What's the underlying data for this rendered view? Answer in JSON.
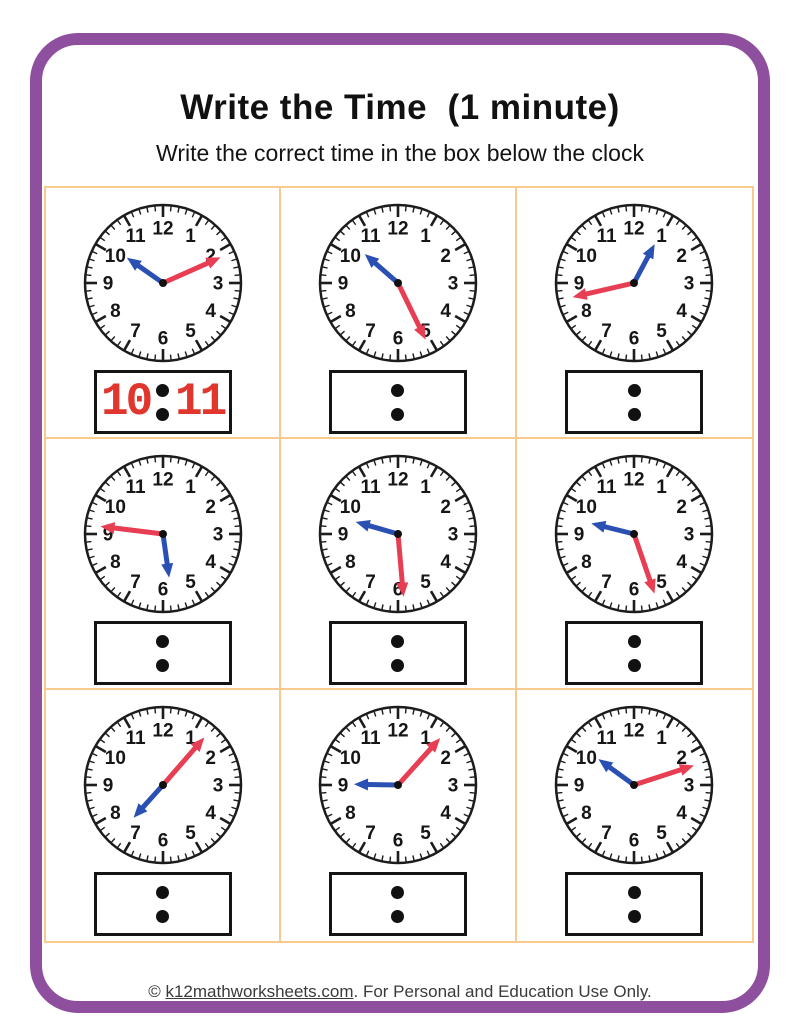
{
  "header": {
    "title": "Write the Time  (1 minute)",
    "subtitle": "Write the correct time in the box below the clock"
  },
  "footer": {
    "prefix": "© ",
    "link": "k12mathworksheets.com",
    "suffix": ". For Personal and Education Use Only."
  },
  "colors": {
    "frame_purple": "#8E4F9E",
    "grid_orange": "#F8CA8E",
    "hour_hand_blue": "#2B50B4",
    "minute_hand_red": "#E83E53",
    "answer_red": "#E0362E",
    "clock_stroke": "#1c1c1c"
  },
  "clock_face": {
    "numbers": [
      "12",
      "1",
      "2",
      "3",
      "4",
      "5",
      "6",
      "7",
      "8",
      "9",
      "10",
      "11"
    ]
  },
  "chart_data": {
    "type": "clock-grid",
    "rows": 3,
    "cols": 3,
    "clocks": [
      {
        "time": "10:11",
        "hour_angle": 305,
        "minute_angle": 66,
        "answer_hh": "10",
        "answer_mm": "11"
      },
      {
        "time": "10:26",
        "hour_angle": 311,
        "minute_angle": 154,
        "answer_hh": "",
        "answer_mm": ""
      },
      {
        "time": "12:43",
        "hour_angle": 28,
        "minute_angle": 257,
        "answer_hh": "",
        "answer_mm": ""
      },
      {
        "time": "5:46",
        "hour_angle": 172,
        "minute_angle": 277,
        "answer_hh": "",
        "answer_mm": ""
      },
      {
        "time": "9:29",
        "hour_angle": 286,
        "minute_angle": 175,
        "answer_hh": "",
        "answer_mm": ""
      },
      {
        "time": "9:27",
        "hour_angle": 284,
        "minute_angle": 161,
        "answer_hh": "",
        "answer_mm": ""
      },
      {
        "time": "7:07",
        "hour_angle": 222,
        "minute_angle": 41,
        "answer_hh": "",
        "answer_mm": ""
      },
      {
        "time": "9:07",
        "hour_angle": 271,
        "minute_angle": 42,
        "answer_hh": "",
        "answer_mm": ""
      },
      {
        "time": "10:12",
        "hour_angle": 306,
        "minute_angle": 72,
        "answer_hh": "",
        "answer_mm": ""
      }
    ]
  }
}
